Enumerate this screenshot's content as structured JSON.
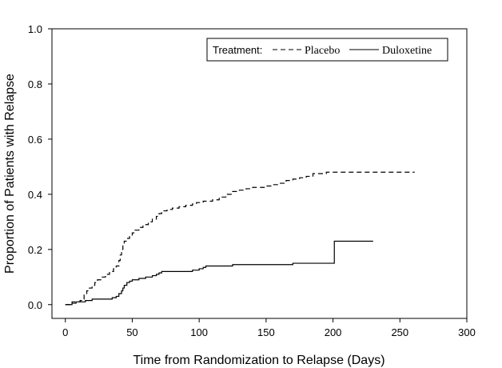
{
  "chart_data": {
    "type": "line",
    "title": "",
    "xlabel": "Time from Randomization to Relapse (Days)",
    "ylabel": "Proportion of Patients with Relapse",
    "xlim": [
      -10,
      300
    ],
    "ylim": [
      -0.05,
      1.0
    ],
    "xticks": [
      0,
      50,
      100,
      150,
      200,
      250,
      300
    ],
    "yticks": [
      "0.0",
      "0.2",
      "0.4",
      "0.6",
      "0.8",
      "1.0"
    ],
    "grid": false,
    "legend": {
      "position": "top-right",
      "title": "Treatment:",
      "entries": [
        "Placebo",
        "Duloxetine"
      ]
    },
    "series": [
      {
        "name": "Placebo",
        "line_style": "dashed",
        "color": "#000000",
        "x": [
          0,
          5,
          8,
          11,
          13,
          14,
          16,
          18,
          20,
          22,
          24,
          27,
          30,
          33,
          36,
          38,
          40,
          41,
          42,
          43,
          44,
          46,
          48,
          50,
          52,
          55,
          58,
          62,
          65,
          68,
          70,
          72,
          76,
          80,
          85,
          90,
          95,
          98,
          103,
          110,
          115,
          120,
          125,
          130,
          135,
          140,
          150,
          155,
          160,
          165,
          170,
          175,
          180,
          185,
          195,
          215,
          261
        ],
        "y": [
          0.0,
          0.01,
          0.01,
          0.015,
          0.02,
          0.04,
          0.05,
          0.06,
          0.07,
          0.08,
          0.09,
          0.1,
          0.11,
          0.12,
          0.13,
          0.14,
          0.16,
          0.18,
          0.2,
          0.22,
          0.23,
          0.24,
          0.25,
          0.26,
          0.27,
          0.28,
          0.29,
          0.3,
          0.31,
          0.32,
          0.33,
          0.34,
          0.345,
          0.35,
          0.355,
          0.36,
          0.365,
          0.37,
          0.375,
          0.38,
          0.39,
          0.4,
          0.41,
          0.415,
          0.42,
          0.425,
          0.43,
          0.435,
          0.44,
          0.45,
          0.455,
          0.46,
          0.465,
          0.475,
          0.48,
          0.48,
          0.48
        ]
      },
      {
        "name": "Duloxetine",
        "line_style": "solid",
        "color": "#000000",
        "x": [
          0,
          5,
          8,
          12,
          15,
          20,
          25,
          30,
          35,
          38,
          40,
          42,
          43,
          44,
          46,
          48,
          50,
          55,
          60,
          65,
          68,
          70,
          72,
          80,
          90,
          95,
          100,
          103,
          105,
          110,
          120,
          125,
          150,
          165,
          170,
          185,
          200,
          201,
          230
        ],
        "y": [
          0.0,
          0.005,
          0.01,
          0.01,
          0.015,
          0.02,
          0.02,
          0.02,
          0.025,
          0.03,
          0.04,
          0.05,
          0.06,
          0.07,
          0.08,
          0.085,
          0.09,
          0.095,
          0.1,
          0.105,
          0.11,
          0.115,
          0.12,
          0.12,
          0.12,
          0.125,
          0.13,
          0.135,
          0.14,
          0.14,
          0.14,
          0.145,
          0.145,
          0.145,
          0.15,
          0.15,
          0.15,
          0.23,
          0.23
        ]
      }
    ]
  }
}
